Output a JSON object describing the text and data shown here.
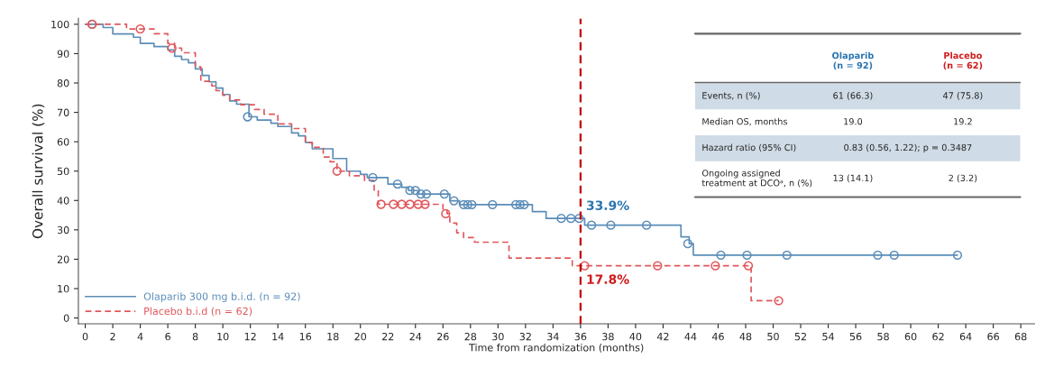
{
  "chart_data": {
    "type": "step",
    "xlabel": "Time from randomization (months)",
    "ylabel": "Overall survival (%)",
    "xlim": [
      -0.5,
      69
    ],
    "ylim": [
      -2,
      102
    ],
    "xticks": [
      0,
      2,
      4,
      6,
      8,
      10,
      12,
      14,
      16,
      18,
      20,
      22,
      24,
      26,
      28,
      30,
      32,
      34,
      36,
      38,
      40,
      42,
      44,
      46,
      48,
      50,
      52,
      54,
      56,
      58,
      60,
      62,
      64,
      66,
      68
    ],
    "yticks": [
      0,
      10,
      20,
      30,
      40,
      50,
      60,
      70,
      80,
      90,
      100
    ],
    "grid": false,
    "legend": "bottom left",
    "series": [
      {
        "name": "Olaparib 300 mg b.i.d. (n = 92)",
        "color": "#5b8db8",
        "line_style": "solid",
        "marker": "none",
        "x": [
          0,
          1.3,
          2,
          3.5,
          4,
          5,
          6,
          6.5,
          7,
          7.5,
          8,
          8.5,
          9,
          9.5,
          10,
          10.5,
          11,
          11.9,
          12.5,
          13.5,
          14,
          15,
          15.5,
          16,
          16.5,
          18,
          19,
          20,
          20.5,
          22,
          23,
          23.5,
          24.2,
          26.5,
          27.2,
          32.5,
          33.5,
          36.3,
          43.3,
          43.9,
          44.2,
          63.4
        ],
        "values": [
          100,
          98.9,
          96.7,
          95.6,
          93.5,
          92.4,
          91.3,
          89.1,
          88,
          86.9,
          84.8,
          82.6,
          80.4,
          78.3,
          76.1,
          73.9,
          72.8,
          68.5,
          67.4,
          66.3,
          65.2,
          63,
          62,
          59.8,
          57.6,
          54.3,
          50,
          48.9,
          47.8,
          45.6,
          44.5,
          43.4,
          42.2,
          39.9,
          38.6,
          36.2,
          33.9,
          31.6,
          27.6,
          25.3,
          21.4,
          21.4
        ]
      },
      {
        "name": "Placebo b.i.d (n = 62)",
        "color": "#e0575b",
        "line_style": "dashed",
        "marker": "none",
        "x": [
          0,
          3,
          5,
          6,
          6.5,
          7,
          8,
          8.4,
          9.2,
          9.5,
          10,
          10.5,
          11.3,
          12.3,
          13,
          14,
          15,
          16,
          16.5,
          17.3,
          17.8,
          18.3,
          19.2,
          20.3,
          21,
          21.3,
          26,
          26.3,
          26.5,
          27,
          27.5,
          28.3,
          30.8,
          35.4,
          48.4,
          50.4
        ],
        "values": [
          100,
          98.4,
          96.8,
          93.5,
          91.9,
          90.3,
          85.5,
          80.6,
          79,
          77.4,
          75.8,
          74.2,
          72.6,
          71,
          69.4,
          66.1,
          64.5,
          59.7,
          58.1,
          54.8,
          53.2,
          50,
          48.4,
          46.8,
          43.5,
          38.7,
          37.1,
          35.5,
          32.3,
          29,
          27.4,
          25.8,
          20.4,
          17.8,
          5.9,
          5.9
        ]
      },
      {
        "type": "scatter",
        "marker": "circle",
        "color": "#5b8db8",
        "x": [
          0.5,
          11.8,
          20.9,
          22.7,
          23.6,
          24,
          24.4,
          24.8,
          26.1,
          26.8,
          27.5,
          27.8,
          28.1,
          29.6,
          31.3,
          31.6,
          31.9,
          34.6,
          35.3,
          35.9,
          36.8,
          38.2,
          40.8,
          43.8,
          46.2,
          48.1,
          51,
          57.6,
          58.8,
          63.4
        ],
        "values": [
          100,
          68.5,
          47.8,
          45.6,
          43.4,
          43.4,
          42.2,
          42.2,
          42.2,
          39.9,
          38.6,
          38.6,
          38.6,
          38.6,
          38.6,
          38.6,
          38.6,
          33.9,
          33.9,
          33.9,
          31.6,
          31.6,
          31.6,
          25.3,
          21.4,
          21.4,
          21.4,
          21.4,
          21.4,
          21.4
        ]
      },
      {
        "type": "scatter",
        "marker": "circle",
        "color": "#e0575b",
        "x": [
          0.5,
          4,
          6.3,
          18.3,
          21.5,
          22.4,
          23,
          23.6,
          24.2,
          24.7,
          26.2,
          36.3,
          41.6,
          45.8,
          48.2,
          50.4
        ],
        "values": [
          100,
          98.4,
          91.9,
          50,
          38.7,
          38.7,
          38.7,
          38.7,
          38.7,
          38.7,
          35.5,
          17.8,
          17.8,
          17.8,
          17.8,
          5.9
        ]
      }
    ],
    "ref_lines": [
      {
        "axis": "x",
        "value": 36,
        "color": "#c00000",
        "line_style": "dashed"
      }
    ],
    "annotations": [
      {
        "text": "33.9%",
        "x": 36,
        "y": 33.9
      },
      {
        "text": "17.8%",
        "x": 36,
        "y": 17.8
      },
      "Olaparib\n(n = 92)",
      "Placebo\n(n = 62)",
      "Events, n (%)",
      "61 (66.3)",
      "47 (75.8)",
      "Median OS, months",
      "19.0",
      "19.2",
      "Hazard ratio (95% CI)",
      "0.83 (0.56, 1.22); p = 0.3487",
      "Ongoing assigned\ntreatment at DCOᵃ, n (%)",
      "13 (14.1)",
      "2 (3.2)"
    ]
  }
}
